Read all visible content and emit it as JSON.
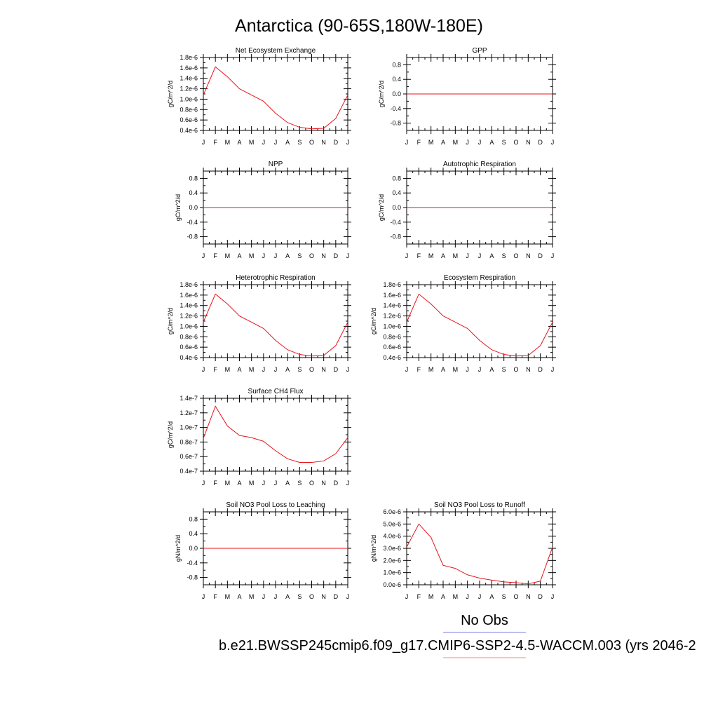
{
  "title": "Antarctica (90-65S,180W-180E)",
  "month_ticks": [
    "J",
    "F",
    "M",
    "A",
    "M",
    "J",
    "J",
    "A",
    "S",
    "O",
    "N",
    "D",
    "J"
  ],
  "legend": {
    "obs_label": "No Obs",
    "obs_color": "#7b7bea",
    "model_label": "b.e21.BWSSP245cmip6.f09_g17.CMIP6-SSP2-4.5-WACCM.003 (yrs 2046-2",
    "model_color": "#f08a8a"
  },
  "series_color": "#e8141c",
  "chart_data": [
    {
      "type": "line",
      "title": "Net Ecosystem Exchange",
      "ylabel": "gC/m^2/d",
      "ylim": [
        4e-07,
        1.8e-06
      ],
      "yticks": [
        "0.4e-6",
        "0.6e-6",
        "0.8e-6",
        "1.0e-6",
        "1.2e-6",
        "1.4e-6",
        "1.6e-6",
        "1.8e-6"
      ],
      "ytick_values": [
        4e-07,
        6e-07,
        8e-07,
        1e-06,
        1.2e-06,
        1.4e-06,
        1.6e-06,
        1.8e-06
      ],
      "x": [
        "J",
        "F",
        "M",
        "A",
        "M",
        "J",
        "J",
        "A",
        "S",
        "O",
        "N",
        "D",
        "J"
      ],
      "values": [
        1.08e-06,
        1.62e-06,
        1.43e-06,
        1.2e-06,
        1.08e-06,
        9.6e-07,
        7.3e-07,
        5.5e-07,
        4.6e-07,
        4.3e-07,
        4.4e-07,
        6.3e-07,
        1.08e-06
      ],
      "grid": false
    },
    {
      "type": "line",
      "title": "GPP",
      "ylabel": "gC/m^2/d",
      "ylim": [
        -1.0,
        1.0
      ],
      "yticks": [
        "-0.8",
        "-0.4",
        "0.0",
        "0.4",
        "0.8"
      ],
      "ytick_values": [
        -0.8,
        -0.4,
        0.0,
        0.4,
        0.8
      ],
      "x": [
        "J",
        "F",
        "M",
        "A",
        "M",
        "J",
        "J",
        "A",
        "S",
        "O",
        "N",
        "D",
        "J"
      ],
      "values": [
        0,
        0,
        0,
        0,
        0,
        0,
        0,
        0,
        0,
        0,
        0,
        0,
        0
      ],
      "grid": false
    },
    {
      "type": "line",
      "title": "NPP",
      "ylabel": "gC/m^2/d",
      "ylim": [
        -1.0,
        1.0
      ],
      "yticks": [
        "-0.8",
        "-0.4",
        "0.0",
        "0.4",
        "0.8"
      ],
      "ytick_values": [
        -0.8,
        -0.4,
        0.0,
        0.4,
        0.8
      ],
      "x": [
        "J",
        "F",
        "M",
        "A",
        "M",
        "J",
        "J",
        "A",
        "S",
        "O",
        "N",
        "D",
        "J"
      ],
      "values": [
        0,
        0,
        0,
        0,
        0,
        0,
        0,
        0,
        0,
        0,
        0,
        0,
        0
      ],
      "grid": false
    },
    {
      "type": "line",
      "title": "Autotrophic Respiration",
      "ylabel": "gC/m^2/d",
      "ylim": [
        -1.0,
        1.0
      ],
      "yticks": [
        "-0.8",
        "-0.4",
        "0.0",
        "0.4",
        "0.8"
      ],
      "ytick_values": [
        -0.8,
        -0.4,
        0.0,
        0.4,
        0.8
      ],
      "x": [
        "J",
        "F",
        "M",
        "A",
        "M",
        "J",
        "J",
        "A",
        "S",
        "O",
        "N",
        "D",
        "J"
      ],
      "values": [
        0,
        0,
        0,
        0,
        0,
        0,
        0,
        0,
        0,
        0,
        0,
        0,
        0
      ],
      "grid": false
    },
    {
      "type": "line",
      "title": "Heterotrophic Respiration",
      "ylabel": "gC/m^2/d",
      "ylim": [
        4e-07,
        1.8e-06
      ],
      "yticks": [
        "0.4e-6",
        "0.6e-6",
        "0.8e-6",
        "1.0e-6",
        "1.2e-6",
        "1.4e-6",
        "1.6e-6",
        "1.8e-6"
      ],
      "ytick_values": [
        4e-07,
        6e-07,
        8e-07,
        1e-06,
        1.2e-06,
        1.4e-06,
        1.6e-06,
        1.8e-06
      ],
      "x": [
        "J",
        "F",
        "M",
        "A",
        "M",
        "J",
        "J",
        "A",
        "S",
        "O",
        "N",
        "D",
        "J"
      ],
      "values": [
        1.08e-06,
        1.62e-06,
        1.43e-06,
        1.2e-06,
        1.08e-06,
        9.6e-07,
        7.3e-07,
        5.5e-07,
        4.6e-07,
        4.3e-07,
        4.4e-07,
        6.3e-07,
        1.08e-06
      ],
      "grid": false
    },
    {
      "type": "line",
      "title": "Ecosystem Respiration",
      "ylabel": "gC/m^2/d",
      "ylim": [
        4e-07,
        1.8e-06
      ],
      "yticks": [
        "0.4e-6",
        "0.6e-6",
        "0.8e-6",
        "1.0e-6",
        "1.2e-6",
        "1.4e-6",
        "1.6e-6",
        "1.8e-6"
      ],
      "ytick_values": [
        4e-07,
        6e-07,
        8e-07,
        1e-06,
        1.2e-06,
        1.4e-06,
        1.6e-06,
        1.8e-06
      ],
      "x": [
        "J",
        "F",
        "M",
        "A",
        "M",
        "J",
        "J",
        "A",
        "S",
        "O",
        "N",
        "D",
        "J"
      ],
      "values": [
        1.08e-06,
        1.62e-06,
        1.43e-06,
        1.2e-06,
        1.08e-06,
        9.6e-07,
        7.3e-07,
        5.5e-07,
        4.6e-07,
        4.3e-07,
        4.4e-07,
        6.3e-07,
        1.08e-06
      ],
      "grid": false
    },
    {
      "type": "line",
      "title": "Surface CH4 Flux",
      "ylabel": "gC/m^2/d",
      "ylim": [
        4e-08,
        1.4e-07
      ],
      "yticks": [
        "0.4e-7",
        "0.6e-7",
        "0.8e-7",
        "1.0e-7",
        "1.2e-7",
        "1.4e-7"
      ],
      "ytick_values": [
        4e-08,
        6e-08,
        8e-08,
        1e-07,
        1.2e-07,
        1.4e-07
      ],
      "x": [
        "J",
        "F",
        "M",
        "A",
        "M",
        "J",
        "J",
        "A",
        "S",
        "O",
        "N",
        "D",
        "J"
      ],
      "values": [
        8.5e-08,
        1.29e-07,
        1.02e-07,
        8.9e-08,
        8.6e-08,
        8.1e-08,
        6.8e-08,
        5.7e-08,
        5.2e-08,
        5.2e-08,
        5.4e-08,
        6.4e-08,
        8.6e-08
      ],
      "grid": false
    },
    {
      "type": "line",
      "title": "Soil NO3 Pool Loss to Leaching",
      "ylabel": "gN/m^2/d",
      "ylim": [
        -1.0,
        1.0
      ],
      "yticks": [
        "-0.8",
        "-0.4",
        "0.0",
        "0.4",
        "0.8"
      ],
      "ytick_values": [
        -0.8,
        -0.4,
        0.0,
        0.4,
        0.8
      ],
      "x": [
        "J",
        "F",
        "M",
        "A",
        "M",
        "J",
        "J",
        "A",
        "S",
        "O",
        "N",
        "D",
        "J"
      ],
      "values": [
        0,
        0,
        0,
        0,
        0,
        0,
        0,
        0,
        0,
        0,
        0,
        0,
        0
      ],
      "grid": false
    },
    {
      "type": "line",
      "title": "Soil NO3 Pool Loss to Runoff",
      "ylabel": "gN/m^2/d",
      "ylim": [
        0.0,
        6e-06
      ],
      "yticks": [
        "0.0e-6",
        "1.0e-6",
        "2.0e-6",
        "3.0e-6",
        "4.0e-6",
        "5.0e-6",
        "6.0e-6"
      ],
      "ytick_values": [
        0.0,
        1e-06,
        2e-06,
        3e-06,
        4e-06,
        5e-06,
        6e-06
      ],
      "x": [
        "J",
        "F",
        "M",
        "A",
        "M",
        "J",
        "J",
        "A",
        "S",
        "O",
        "N",
        "D",
        "J"
      ],
      "values": [
        3.1e-06,
        5e-06,
        3.9e-06,
        1.6e-06,
        1.35e-06,
        8.2e-07,
        5.5e-07,
        3.8e-07,
        2.4e-07,
        1.7e-07,
        8e-08,
        3e-07,
        3.1e-06
      ],
      "grid": false
    }
  ]
}
